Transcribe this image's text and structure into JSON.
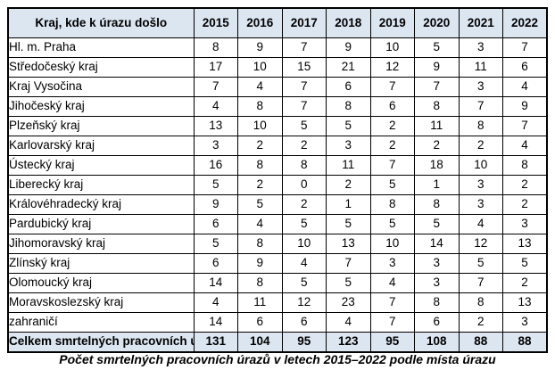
{
  "colors": {
    "header_bg": "#dce6f1",
    "total_bg": "#dce6f1",
    "border": "#000000",
    "text": "#000000"
  },
  "table": {
    "header": {
      "region_label": "Kraj, kde k úrazu došlo",
      "years": [
        "2015",
        "2016",
        "2017",
        "2018",
        "2019",
        "2020",
        "2021",
        "2022"
      ]
    },
    "rows": [
      {
        "region": "Hl. m. Praha",
        "values": [
          8,
          9,
          7,
          9,
          10,
          5,
          3,
          7
        ]
      },
      {
        "region": "Středočeský kraj",
        "values": [
          17,
          10,
          15,
          21,
          12,
          9,
          11,
          6
        ]
      },
      {
        "region": "Kraj Vysočina",
        "values": [
          7,
          4,
          7,
          6,
          7,
          7,
          3,
          4
        ]
      },
      {
        "region": "Jihočeský kraj",
        "values": [
          4,
          8,
          7,
          8,
          6,
          8,
          7,
          9
        ]
      },
      {
        "region": "Plzeňský kraj",
        "values": [
          13,
          10,
          5,
          5,
          2,
          11,
          8,
          7
        ]
      },
      {
        "region": "Karlovarský kraj",
        "values": [
          3,
          2,
          2,
          3,
          2,
          2,
          2,
          4
        ]
      },
      {
        "region": "Ústecký kraj",
        "values": [
          16,
          8,
          8,
          11,
          7,
          18,
          10,
          8
        ]
      },
      {
        "region": "Liberecký kraj",
        "values": [
          5,
          2,
          0,
          2,
          5,
          1,
          3,
          2
        ]
      },
      {
        "region": "Královéhradecký kraj",
        "values": [
          9,
          5,
          2,
          1,
          8,
          8,
          3,
          2
        ]
      },
      {
        "region": "Pardubický kraj",
        "values": [
          6,
          4,
          5,
          5,
          5,
          5,
          4,
          3
        ]
      },
      {
        "region": "Jihomoravský kraj",
        "values": [
          5,
          8,
          10,
          13,
          10,
          14,
          12,
          13
        ]
      },
      {
        "region": "Zlínský kraj",
        "values": [
          6,
          9,
          4,
          7,
          3,
          3,
          5,
          5
        ]
      },
      {
        "region": "Olomoucký kraj",
        "values": [
          14,
          8,
          5,
          5,
          4,
          3,
          7,
          2
        ]
      },
      {
        "region": "Moravskoslezský kraj",
        "values": [
          4,
          11,
          12,
          23,
          7,
          8,
          8,
          13
        ]
      },
      {
        "region": "zahraničí",
        "values": [
          14,
          6,
          6,
          4,
          7,
          6,
          2,
          3
        ]
      }
    ],
    "total": {
      "label": "Celkem smrtelných pracovních úrazů",
      "values": [
        131,
        104,
        95,
        123,
        95,
        108,
        88,
        88
      ]
    }
  },
  "caption": "Počet smrtelných pracovních úrazů v letech 2015–2022 podle místa úrazu"
}
